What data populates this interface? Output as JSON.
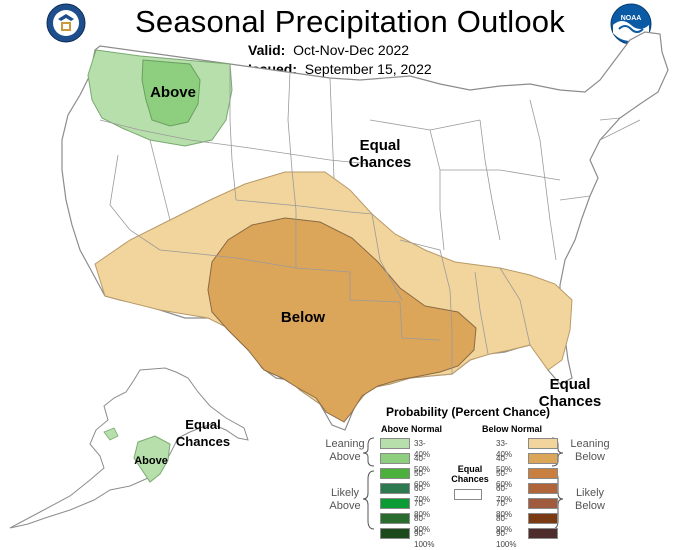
{
  "title": "Seasonal Precipitation Outlook",
  "valid": {
    "label": "Valid:",
    "value": "Oct-Nov-Dec 2022"
  },
  "issued": {
    "label": "Issued:",
    "value": "September 15, 2022"
  },
  "logos": {
    "left": "commerce-seal-icon",
    "right": "noaa-logo-icon",
    "right_text": "NOAA"
  },
  "regions": {
    "above_northwest": "Above",
    "equal_central": [
      "Equal",
      "Chances"
    ],
    "below_south": "Below",
    "equal_southeast": [
      "Equal",
      "Chances"
    ],
    "equal_alaska": [
      "Equal",
      "Chances"
    ],
    "above_alaska": "Above"
  },
  "legend": {
    "title": "Probability (Percent Chance)",
    "above_header": "Above Normal",
    "below_header": "Below Normal",
    "equal_label": [
      "Equal",
      "Chances"
    ],
    "leaning_above": [
      "Leaning",
      "Above"
    ],
    "likely_above": [
      "Likely",
      "Above"
    ],
    "leaning_below": [
      "Leaning",
      "Below"
    ],
    "likely_below": [
      "Likely",
      "Below"
    ],
    "above_classes": [
      {
        "label": "33-40%",
        "color": "#b7dfab"
      },
      {
        "label": "40-50%",
        "color": "#8ecf7f"
      },
      {
        "label": "50-60%",
        "color": "#4cb03c"
      },
      {
        "label": "60-70%",
        "color": "#2e7a50"
      },
      {
        "label": "70-80%",
        "color": "#0a9b34"
      },
      {
        "label": "80-90%",
        "color": "#2a6b2e"
      },
      {
        "label": "90-100%",
        "color": "#1c4a1c"
      }
    ],
    "below_classes": [
      {
        "label": "33-40%",
        "color": "#f2d59c"
      },
      {
        "label": "40-50%",
        "color": "#dca65a"
      },
      {
        "label": "50-60%",
        "color": "#c87f3f"
      },
      {
        "label": "60-70%",
        "color": "#b0643a"
      },
      {
        "label": "70-80%",
        "color": "#a05a3e"
      },
      {
        "label": "80-90%",
        "color": "#7a3a12"
      },
      {
        "label": "90-100%",
        "color": "#4e2c2c"
      }
    ]
  },
  "colors": {
    "above_33_40": "#b7dfab",
    "above_40_50": "#8ecf7f",
    "below_33_40": "#f2d59c",
    "below_40_50": "#dca65a",
    "boundary": "#9a9a9a"
  }
}
